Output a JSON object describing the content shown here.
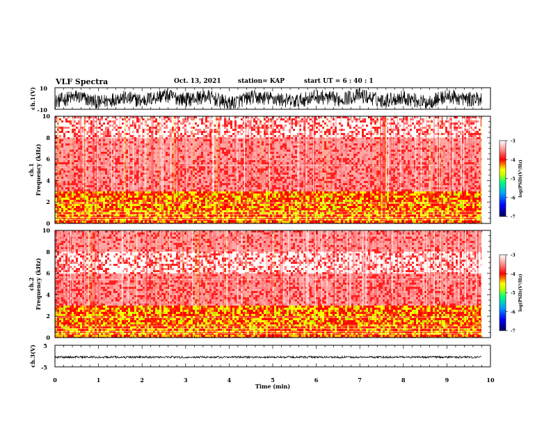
{
  "header": {
    "title": "VLF Spectra",
    "date": "Oct. 13, 2021",
    "station": "station= KAP",
    "start": "start  UT =  6 : 40 : 1"
  },
  "colors": {
    "spectrogram_background": "#ffffff",
    "colormap": [
      "#000060",
      "#0000ff",
      "#00a0ff",
      "#00ff80",
      "#c8ff00",
      "#ffff00",
      "#ff0000",
      "#ffffff"
    ],
    "trace": "#000000"
  },
  "chart_data": [
    {
      "type": "line",
      "panel": "ch1-waveform",
      "ylabel": "ch.1(V)",
      "ylim": [
        -10,
        10
      ],
      "yticks": [
        "10",
        "-10"
      ],
      "xlim": [
        0,
        10
      ],
      "x": [
        0,
        0.5,
        1,
        1.5,
        2,
        2.5,
        3,
        3.5,
        4,
        4.5,
        5,
        5.5,
        6,
        6.5,
        7,
        7.5,
        8,
        8.5,
        9,
        9.5,
        9.8
      ],
      "y": [
        -3,
        2,
        -4,
        1,
        -2,
        3,
        -1,
        2,
        -5,
        1,
        0,
        -3,
        2,
        -1,
        3,
        -2,
        1,
        -4,
        2,
        -1,
        0
      ]
    },
    {
      "type": "heatmap",
      "panel": "ch1-spectrogram",
      "ylabel": "ch.1 Frequency (kHz)",
      "ylim": [
        0,
        10
      ],
      "yticks": [
        "0",
        "2",
        "4",
        "6",
        "8",
        "10"
      ],
      "xlim": [
        0,
        10
      ],
      "frequency_bands_khz": [
        0.5,
        1.5,
        2.5,
        3.5,
        4.5,
        5.5,
        6.5,
        7.5,
        8.5,
        9.5
      ],
      "log_psd": [
        -4.4,
        -4.6,
        -4.1,
        -3.7,
        -3.6,
        -3.5,
        -3.4,
        -3.3,
        -3.2,
        -3.2
      ],
      "colorbar": {
        "label": "log(PSD)(V²/Hz)",
        "range": [
          -7,
          -3
        ],
        "ticks": [
          "-3",
          "-4",
          "-5",
          "-6",
          "-7"
        ]
      }
    },
    {
      "type": "heatmap",
      "panel": "ch2-spectrogram",
      "ylabel": "ch.2 Frequency (kHz)",
      "ylim": [
        0,
        10
      ],
      "yticks": [
        "0",
        "2",
        "4",
        "6",
        "8",
        "10"
      ],
      "xlim": [
        0,
        10
      ],
      "frequency_bands_khz": [
        0.5,
        1.5,
        2.5,
        3.5,
        4.5,
        5.5,
        6.5,
        7.5,
        8.5,
        9.5
      ],
      "log_psd": [
        -4.5,
        -4.8,
        -4.0,
        -3.5,
        -3.4,
        -3.3,
        -3.2,
        -3.2,
        -3.3,
        -3.4
      ],
      "colorbar": {
        "label": "log(PSD)(V²/Hz)",
        "range": [
          -7,
          -3
        ],
        "ticks": [
          "-3",
          "-4",
          "-5",
          "-6",
          "-7"
        ]
      }
    },
    {
      "type": "line",
      "panel": "ch3-waveform",
      "ylabel": "ch.3(V)",
      "ylim": [
        -5,
        5
      ],
      "yticks": [
        "5",
        "-5"
      ],
      "xlim": [
        0,
        10
      ],
      "x": [
        0,
        2,
        4,
        6,
        8,
        9.8
      ],
      "y": [
        -0.5,
        -0.5,
        -0.5,
        -0.5,
        -0.5,
        -0.5
      ]
    }
  ],
  "xaxis": {
    "label": "Time (min)",
    "ticks": [
      "0",
      "1",
      "2",
      "3",
      "4",
      "5",
      "6",
      "7",
      "8",
      "9",
      "10"
    ]
  }
}
